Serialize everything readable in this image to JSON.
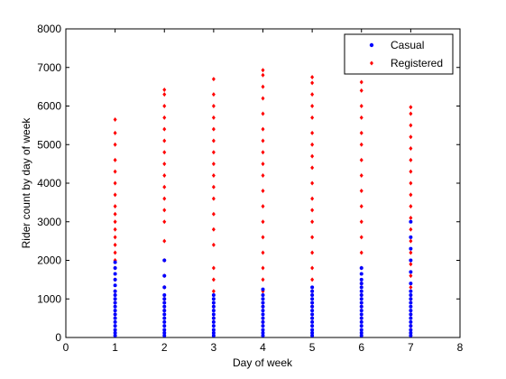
{
  "chart_data": {
    "type": "scatter",
    "title": "",
    "xlabel": "Day of week",
    "ylabel": "Rider count by day of week",
    "xlim": [
      0,
      8
    ],
    "ylim": [
      0,
      8000
    ],
    "xticks": [
      "0",
      "1",
      "2",
      "3",
      "4",
      "5",
      "6",
      "7",
      "8"
    ],
    "yticks": [
      "0",
      "1000",
      "2000",
      "3000",
      "4000",
      "5000",
      "6000",
      "7000",
      "8000"
    ],
    "grid": false,
    "legend": {
      "placement": "top-right",
      "entries": [
        "Casual",
        "Registered"
      ]
    },
    "series": [
      {
        "name": "Casual",
        "color": "#0000ff",
        "marker": "point",
        "points": [
          [
            1,
            50
          ],
          [
            1,
            120
          ],
          [
            1,
            200
          ],
          [
            1,
            300
          ],
          [
            1,
            400
          ],
          [
            1,
            500
          ],
          [
            1,
            600
          ],
          [
            1,
            700
          ],
          [
            1,
            800
          ],
          [
            1,
            900
          ],
          [
            1,
            1000
          ],
          [
            1,
            1100
          ],
          [
            1,
            1200
          ],
          [
            1,
            1350
          ],
          [
            1,
            1500
          ],
          [
            1,
            1650
          ],
          [
            1,
            1800
          ],
          [
            1,
            1950
          ],
          [
            2,
            50
          ],
          [
            2,
            120
          ],
          [
            2,
            200
          ],
          [
            2,
            300
          ],
          [
            2,
            400
          ],
          [
            2,
            500
          ],
          [
            2,
            600
          ],
          [
            2,
            700
          ],
          [
            2,
            800
          ],
          [
            2,
            900
          ],
          [
            2,
            1000
          ],
          [
            2,
            1100
          ],
          [
            2,
            1300
          ],
          [
            2,
            1600
          ],
          [
            2,
            2000
          ],
          [
            3,
            50
          ],
          [
            3,
            120
          ],
          [
            3,
            200
          ],
          [
            3,
            300
          ],
          [
            3,
            400
          ],
          [
            3,
            500
          ],
          [
            3,
            600
          ],
          [
            3,
            700
          ],
          [
            3,
            800
          ],
          [
            3,
            900
          ],
          [
            3,
            1000
          ],
          [
            3,
            1100
          ],
          [
            4,
            50
          ],
          [
            4,
            120
          ],
          [
            4,
            200
          ],
          [
            4,
            300
          ],
          [
            4,
            400
          ],
          [
            4,
            500
          ],
          [
            4,
            600
          ],
          [
            4,
            700
          ],
          [
            4,
            800
          ],
          [
            4,
            900
          ],
          [
            4,
            1000
          ],
          [
            4,
            1100
          ],
          [
            4,
            1250
          ],
          [
            5,
            50
          ],
          [
            5,
            120
          ],
          [
            5,
            200
          ],
          [
            5,
            300
          ],
          [
            5,
            400
          ],
          [
            5,
            500
          ],
          [
            5,
            600
          ],
          [
            5,
            700
          ],
          [
            5,
            800
          ],
          [
            5,
            900
          ],
          [
            5,
            1000
          ],
          [
            5,
            1100
          ],
          [
            5,
            1200
          ],
          [
            5,
            1300
          ],
          [
            6,
            50
          ],
          [
            6,
            120
          ],
          [
            6,
            200
          ],
          [
            6,
            300
          ],
          [
            6,
            400
          ],
          [
            6,
            500
          ],
          [
            6,
            600
          ],
          [
            6,
            700
          ],
          [
            6,
            800
          ],
          [
            6,
            900
          ],
          [
            6,
            1000
          ],
          [
            6,
            1100
          ],
          [
            6,
            1200
          ],
          [
            6,
            1300
          ],
          [
            6,
            1400
          ],
          [
            6,
            1500
          ],
          [
            6,
            1650
          ],
          [
            6,
            1800
          ],
          [
            7,
            50
          ],
          [
            7,
            120
          ],
          [
            7,
            200
          ],
          [
            7,
            300
          ],
          [
            7,
            400
          ],
          [
            7,
            500
          ],
          [
            7,
            600
          ],
          [
            7,
            700
          ],
          [
            7,
            800
          ],
          [
            7,
            900
          ],
          [
            7,
            1000
          ],
          [
            7,
            1100
          ],
          [
            7,
            1200
          ],
          [
            7,
            1400
          ],
          [
            7,
            1700
          ],
          [
            7,
            2000
          ],
          [
            7,
            2300
          ],
          [
            7,
            2600
          ],
          [
            7,
            3000
          ]
        ]
      },
      {
        "name": "Registered",
        "color": "#ff0000",
        "marker": "diamond",
        "points": [
          [
            1,
            600
          ],
          [
            1,
            900
          ],
          [
            1,
            1200
          ],
          [
            1,
            1500
          ],
          [
            1,
            1800
          ],
          [
            1,
            2000
          ],
          [
            1,
            2200
          ],
          [
            1,
            2400
          ],
          [
            1,
            2600
          ],
          [
            1,
            2800
          ],
          [
            1,
            3000
          ],
          [
            1,
            3200
          ],
          [
            1,
            3400
          ],
          [
            1,
            3700
          ],
          [
            1,
            4000
          ],
          [
            1,
            4300
          ],
          [
            1,
            4600
          ],
          [
            1,
            5000
          ],
          [
            1,
            5300
          ],
          [
            1,
            5650
          ],
          [
            2,
            700
          ],
          [
            2,
            1000
          ],
          [
            2,
            1300
          ],
          [
            2,
            1600
          ],
          [
            2,
            2000
          ],
          [
            2,
            2500
          ],
          [
            2,
            3000
          ],
          [
            2,
            3300
          ],
          [
            2,
            3600
          ],
          [
            2,
            3900
          ],
          [
            2,
            4200
          ],
          [
            2,
            4500
          ],
          [
            2,
            4800
          ],
          [
            2,
            5100
          ],
          [
            2,
            5400
          ],
          [
            2,
            5700
          ],
          [
            2,
            6000
          ],
          [
            2,
            6300
          ],
          [
            2,
            6420
          ],
          [
            3,
            500
          ],
          [
            3,
            800
          ],
          [
            3,
            1200
          ],
          [
            3,
            1500
          ],
          [
            3,
            1800
          ],
          [
            3,
            2400
          ],
          [
            3,
            2800
          ],
          [
            3,
            3200
          ],
          [
            3,
            3600
          ],
          [
            3,
            3900
          ],
          [
            3,
            4200
          ],
          [
            3,
            4500
          ],
          [
            3,
            4800
          ],
          [
            3,
            5100
          ],
          [
            3,
            5400
          ],
          [
            3,
            5700
          ],
          [
            3,
            6000
          ],
          [
            3,
            6300
          ],
          [
            3,
            6700
          ],
          [
            4,
            400
          ],
          [
            4,
            800
          ],
          [
            4,
            1200
          ],
          [
            4,
            1500
          ],
          [
            4,
            1800
          ],
          [
            4,
            2200
          ],
          [
            4,
            2600
          ],
          [
            4,
            3000
          ],
          [
            4,
            3400
          ],
          [
            4,
            3800
          ],
          [
            4,
            4200
          ],
          [
            4,
            4500
          ],
          [
            4,
            4800
          ],
          [
            4,
            5100
          ],
          [
            4,
            5400
          ],
          [
            4,
            5800
          ],
          [
            4,
            6200
          ],
          [
            4,
            6500
          ],
          [
            4,
            6800
          ],
          [
            4,
            6930
          ],
          [
            5,
            500
          ],
          [
            5,
            800
          ],
          [
            5,
            1200
          ],
          [
            5,
            1500
          ],
          [
            5,
            1800
          ],
          [
            5,
            2200
          ],
          [
            5,
            2600
          ],
          [
            5,
            3000
          ],
          [
            5,
            3300
          ],
          [
            5,
            3600
          ],
          [
            5,
            4000
          ],
          [
            5,
            4400
          ],
          [
            5,
            4700
          ],
          [
            5,
            5000
          ],
          [
            5,
            5300
          ],
          [
            5,
            5700
          ],
          [
            5,
            6000
          ],
          [
            5,
            6300
          ],
          [
            5,
            6600
          ],
          [
            5,
            6750
          ],
          [
            6,
            500
          ],
          [
            6,
            800
          ],
          [
            6,
            1100
          ],
          [
            6,
            1400
          ],
          [
            6,
            1800
          ],
          [
            6,
            2200
          ],
          [
            6,
            2600
          ],
          [
            6,
            3000
          ],
          [
            6,
            3400
          ],
          [
            6,
            3800
          ],
          [
            6,
            4200
          ],
          [
            6,
            4600
          ],
          [
            6,
            5000
          ],
          [
            6,
            5300
          ],
          [
            6,
            5700
          ],
          [
            6,
            6000
          ],
          [
            6,
            6400
          ],
          [
            6,
            6620
          ],
          [
            7,
            300
          ],
          [
            7,
            600
          ],
          [
            7,
            1000
          ],
          [
            7,
            1300
          ],
          [
            7,
            1600
          ],
          [
            7,
            1900
          ],
          [
            7,
            2200
          ],
          [
            7,
            2500
          ],
          [
            7,
            2800
          ],
          [
            7,
            3100
          ],
          [
            7,
            3400
          ],
          [
            7,
            3700
          ],
          [
            7,
            4000
          ],
          [
            7,
            4300
          ],
          [
            7,
            4600
          ],
          [
            7,
            4900
          ],
          [
            7,
            5200
          ],
          [
            7,
            5500
          ],
          [
            7,
            5800
          ],
          [
            7,
            5970
          ]
        ]
      }
    ]
  }
}
